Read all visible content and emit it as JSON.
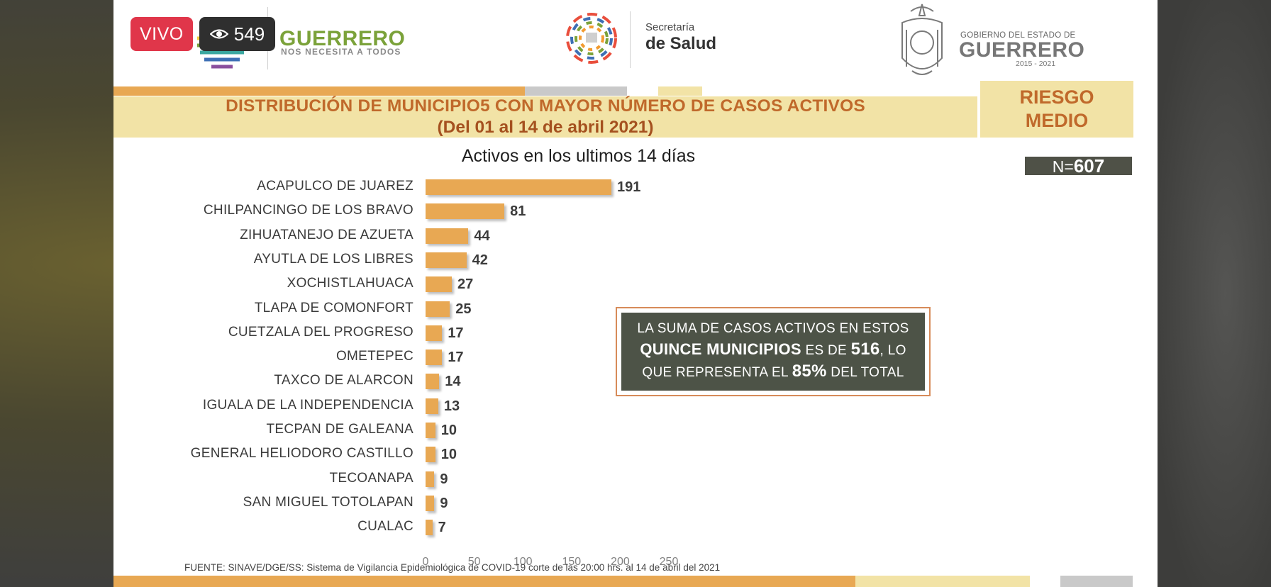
{
  "overlay": {
    "live_label": "VIVO",
    "viewer_count": "549",
    "viewer_icon": "eye-icon"
  },
  "header": {
    "state_logo_word": "GUERRERO",
    "state_logo_tagline": "NOS NECESITA A TODOS",
    "health_logo_line1": "Secretaría",
    "health_logo_line2": "de Salud",
    "gov_line1": "GOBIERNO DEL ESTADO DE",
    "gov_line2": "GUERRERO",
    "gov_years": "2015 - 2021"
  },
  "slide": {
    "title_line1": "DISTRIBUCIÓN DE MUNICIPIO5 CON MAYOR NÚMERO DE  CASOS ACTIVOS",
    "title_line2": "(Del 01 al 14 de abril 2021)",
    "risk_line1": "RIESGO",
    "risk_line2": "MEDIO",
    "n_prefix": "N=",
    "n_value": "607",
    "info_line1": "LA SUMA DE CASOS ACTIVOS EN ESTOS",
    "info_line2_a": "QUINCE MUNICIPIOS",
    "info_line2_b": " ES DE ",
    "info_line2_c": "516",
    "info_line2_d": ", LO",
    "info_line3_a": "QUE REPRESENTA EL ",
    "info_line3_b": "85%",
    "info_line3_c": " DEL TOTAL",
    "source": "FUENTE: SINAVE/DGE/SS: Sistema de Vigilancia Epidemiológica de COVID-19 corte de las 20:00 hrs. al 14 de abril del 2021"
  },
  "colors": {
    "bar": "#e8a853",
    "title_orange": "#c0692b",
    "band_yellow": "#f2e3a6",
    "info_box_bg": "#4d5347",
    "live_red": "#e0364a"
  },
  "chart_data": {
    "type": "bar",
    "orientation": "horizontal",
    "title": "Activos en los ultimos 14 días",
    "categories": [
      "ACAPULCO DE JUAREZ",
      "CHILPANCINGO DE LOS BRAVO",
      "ZIHUATANEJO DE AZUETA",
      "AYUTLA DE LOS LIBRES",
      "XOCHISTLAHUACA",
      "TLAPA DE COMONFORT",
      "CUETZALA DEL PROGRESO",
      "OMETEPEC",
      "TAXCO DE ALARCON",
      "IGUALA DE LA INDEPENDENCIA",
      "TECPAN DE GALEANA",
      "GENERAL HELIODORO CASTILLO",
      "TECOANAPA",
      "SAN MIGUEL TOTOLAPAN",
      "CUALAC"
    ],
    "values": [
      191,
      81,
      44,
      42,
      27,
      25,
      17,
      17,
      14,
      13,
      10,
      10,
      9,
      9,
      7
    ],
    "xlim": [
      0,
      250
    ],
    "xticks": [
      "0",
      "50",
      "100",
      "150",
      "200",
      "250"
    ],
    "grid": false,
    "legend": "none"
  }
}
